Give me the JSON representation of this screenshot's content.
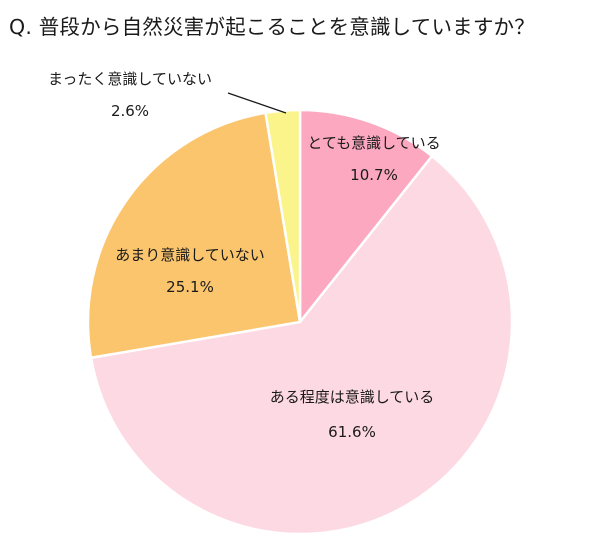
{
  "chart_data": {
    "type": "pie",
    "title": "Q.  普段から自然災害が起こることを意識していますか？",
    "slices": [
      {
        "label": "とても意識している",
        "value": 10.7,
        "value_label": "10.7%",
        "color": "#FCA8C0"
      },
      {
        "label": "ある程度は意識している",
        "value": 61.6,
        "value_label": "61.6%",
        "color": "#FDD9E3"
      },
      {
        "label": "あまり意識していない",
        "value": 25.1,
        "value_label": "25.1%",
        "color": "#FBC56E"
      },
      {
        "label": "まったく意識していない",
        "value": 2.6,
        "value_label": "2.6%",
        "color": "#FAF48A"
      }
    ],
    "start_angle": "12 o'clock",
    "direction": "clockwise",
    "legend": "none",
    "labels": "on-slice"
  }
}
